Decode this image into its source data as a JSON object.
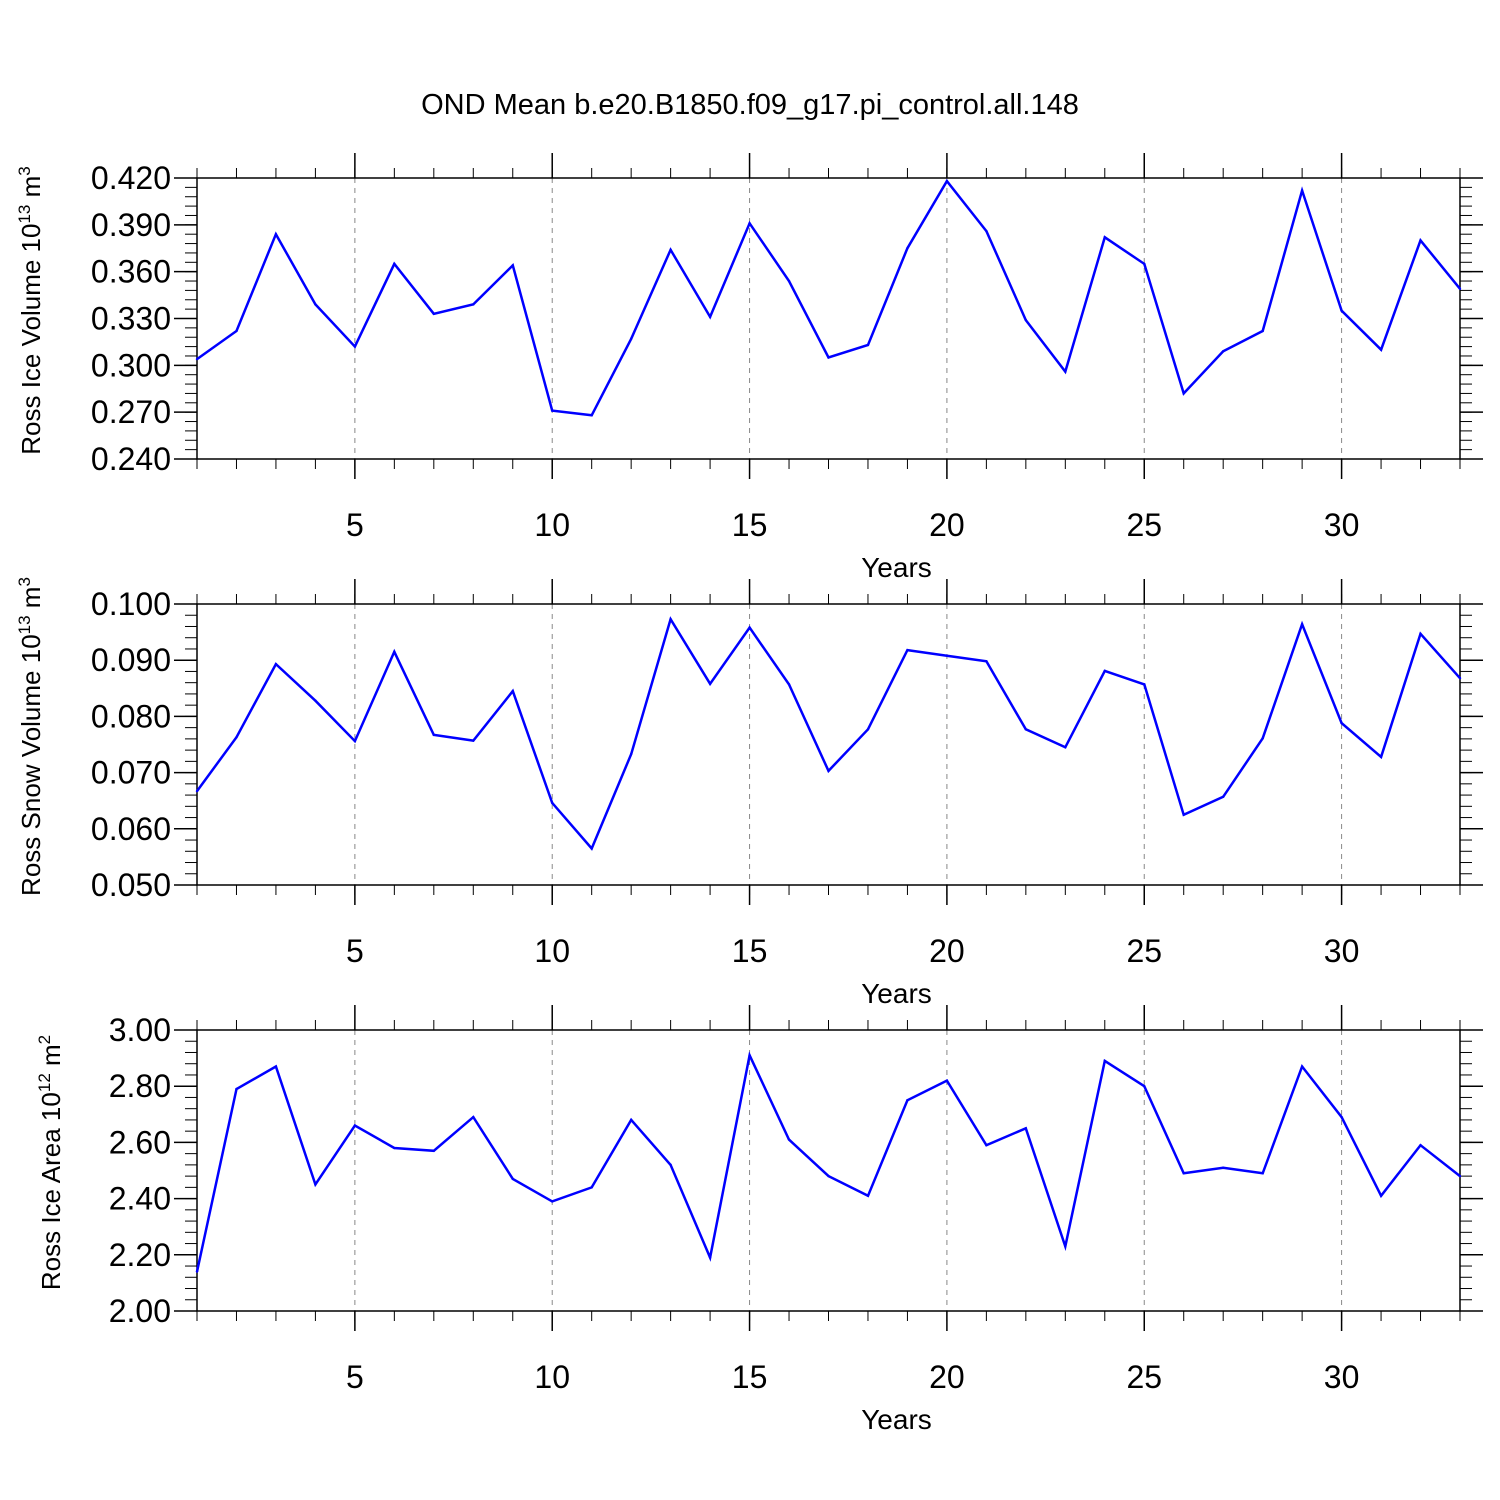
{
  "title": "OND Mean b.e20.B1850.f09_g17.pi_control.all.148",
  "colors": {
    "line": "#0000ff",
    "frame": "#000000",
    "grid": "#888888"
  },
  "chart_data": [
    {
      "type": "line",
      "title": "OND Mean b.e20.B1850.f09_g17.pi_control.all.148",
      "xlabel": "Years",
      "ylabel": {
        "text": "Ross Ice Volume 10",
        "exp": "13",
        "unit": " m",
        "unit_exp": "3"
      },
      "xlim": [
        1,
        33
      ],
      "ylim": [
        0.24,
        0.42
      ],
      "yticks": [
        "0.240",
        "0.270",
        "0.300",
        "0.330",
        "0.360",
        "0.390",
        "0.420"
      ],
      "xticks": [
        "5",
        "10",
        "15",
        "20",
        "25",
        "30"
      ],
      "grid": "vertical dashed at major x ticks",
      "series": [
        {
          "x": [
            1,
            2,
            3,
            4,
            5,
            6,
            7,
            8,
            9,
            10,
            11,
            12,
            13,
            14,
            15,
            16,
            17,
            18,
            19,
            20,
            21,
            22,
            23,
            24,
            25,
            26,
            27,
            28,
            29,
            30,
            31,
            32,
            33
          ],
          "values": [
            0.304,
            0.322,
            0.384,
            0.339,
            0.312,
            0.365,
            0.333,
            0.339,
            0.364,
            0.271,
            0.268,
            0.317,
            0.374,
            0.331,
            0.391,
            0.354,
            0.305,
            0.313,
            0.375,
            0.418,
            0.386,
            0.329,
            0.296,
            0.382,
            0.365,
            0.282,
            0.309,
            0.322,
            0.412,
            0.335,
            0.31,
            0.38,
            0.349
          ]
        }
      ]
    },
    {
      "type": "line",
      "xlabel": "Years",
      "ylabel": {
        "text": "Ross Snow Volume 10",
        "exp": "13",
        "unit": " m",
        "unit_exp": "3"
      },
      "xlim": [
        1,
        33
      ],
      "ylim": [
        0.05,
        0.1
      ],
      "yticks": [
        "0.050",
        "0.060",
        "0.070",
        "0.080",
        "0.090",
        "0.100"
      ],
      "xticks": [
        "5",
        "10",
        "15",
        "20",
        "25",
        "30"
      ],
      "grid": "vertical dashed at major x ticks",
      "series": [
        {
          "x": [
            1,
            2,
            3,
            4,
            5,
            6,
            7,
            8,
            9,
            10,
            11,
            12,
            13,
            14,
            15,
            16,
            17,
            18,
            19,
            20,
            21,
            22,
            23,
            24,
            25,
            26,
            27,
            28,
            29,
            30,
            31,
            32,
            33
          ],
          "values": [
            0.0667,
            0.0763,
            0.0893,
            0.0828,
            0.0756,
            0.0915,
            0.0767,
            0.0757,
            0.0845,
            0.0646,
            0.0565,
            0.0733,
            0.0973,
            0.0858,
            0.0958,
            0.0857,
            0.0703,
            0.0777,
            0.0918,
            0.0908,
            0.0898,
            0.0777,
            0.0745,
            0.0881,
            0.0857,
            0.0625,
            0.0657,
            0.0761,
            0.0964,
            0.0788,
            0.0728,
            0.0947,
            0.0868
          ]
        }
      ]
    },
    {
      "type": "line",
      "xlabel": "Years",
      "ylabel": {
        "text": "Ross Ice Area 10",
        "exp": "12",
        "unit": " m",
        "unit_exp": "2"
      },
      "xlim": [
        1,
        33
      ],
      "ylim": [
        2.0,
        3.0
      ],
      "yticks": [
        "2.00",
        "2.20",
        "2.40",
        "2.60",
        "2.80",
        "3.00"
      ],
      "xticks": [
        "5",
        "10",
        "15",
        "20",
        "25",
        "30"
      ],
      "grid": "vertical dashed at major x ticks",
      "series": [
        {
          "x": [
            1,
            2,
            3,
            4,
            5,
            6,
            7,
            8,
            9,
            10,
            11,
            12,
            13,
            14,
            15,
            16,
            17,
            18,
            19,
            20,
            21,
            22,
            23,
            24,
            25,
            26,
            27,
            28,
            29,
            30,
            31,
            32,
            33
          ],
          "values": [
            2.14,
            2.79,
            2.87,
            2.45,
            2.66,
            2.58,
            2.57,
            2.69,
            2.47,
            2.39,
            2.44,
            2.68,
            2.52,
            2.19,
            2.91,
            2.61,
            2.48,
            2.41,
            2.75,
            2.82,
            2.59,
            2.65,
            2.23,
            2.89,
            2.8,
            2.49,
            2.51,
            2.49,
            2.87,
            2.69,
            2.41,
            2.59,
            2.48
          ]
        }
      ]
    }
  ]
}
